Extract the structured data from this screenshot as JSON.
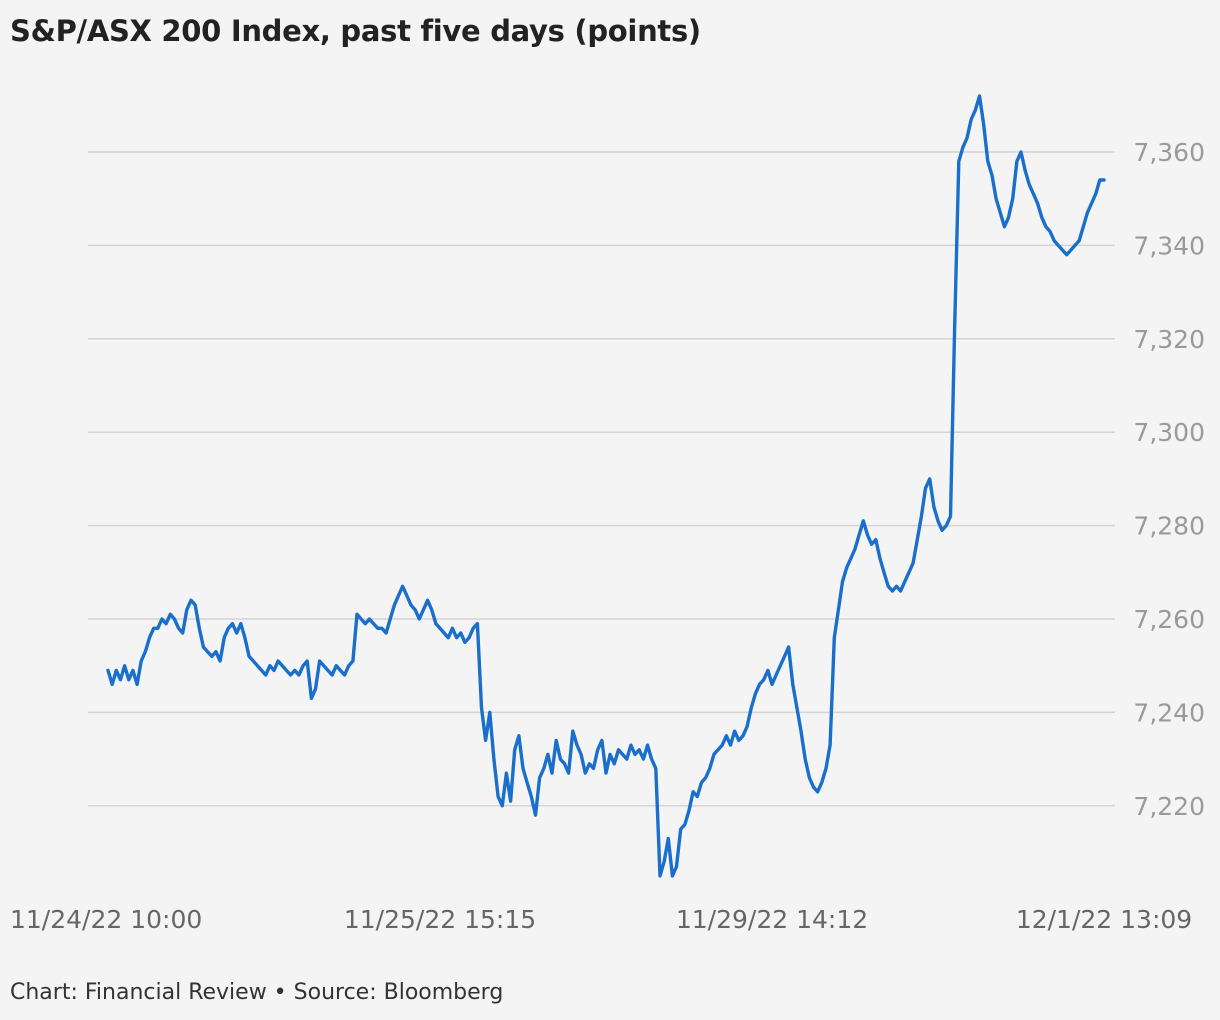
{
  "title": "S&P/ASX 200 Index, past five days (points)",
  "footer": "Chart: Financial Review • Source: Bloomberg",
  "colors": {
    "line": "#1a6fcc",
    "background": "#f4f4f4",
    "grid": "#d4d4d4"
  },
  "chart_data": {
    "type": "line",
    "title": "S&P/ASX 200 Index, past five days (points)",
    "xlabel": "",
    "ylabel": "",
    "ylim": [
      7203,
      7375
    ],
    "yticks": [
      7220,
      7240,
      7260,
      7280,
      7300,
      7320,
      7340,
      7360
    ],
    "ytick_labels": [
      "7,220",
      "7,240",
      "7,260",
      "7,280",
      "7,300",
      "7,320",
      "7,340",
      "7,360"
    ],
    "xticks": [
      "11/24/22 10:00",
      "11/25/22 15:15",
      "11/29/22 14:12",
      "12/1/22 13:09"
    ],
    "xtick_positions": [
      0,
      80,
      160,
      240
    ],
    "grid": true,
    "legend": "none",
    "series": [
      {
        "values": [
          7249,
          7246,
          7249,
          7247,
          7250,
          7247,
          7249,
          7246,
          7251,
          7253,
          7256,
          7258,
          7258,
          7260,
          7259,
          7261,
          7260,
          7258,
          7257,
          7262,
          7264,
          7263,
          7258,
          7254,
          7253,
          7252,
          7253,
          7251,
          7256,
          7258,
          7259,
          7257,
          7259,
          7256,
          7252,
          7251,
          7250,
          7249,
          7248,
          7250,
          7249,
          7251,
          7250,
          7249,
          7248,
          7249,
          7248,
          7250,
          7251,
          7243,
          7245,
          7251,
          7250,
          7249,
          7248,
          7250,
          7249,
          7248,
          7250,
          7251,
          7261,
          7260,
          7259,
          7260,
          7259,
          7258,
          7258,
          7257,
          7260,
          7263,
          7265,
          7267,
          7265,
          7263,
          7262,
          7260,
          7262,
          7264,
          7262,
          7259,
          7258,
          7257,
          7256,
          7258,
          7256,
          7257,
          7255,
          7256,
          7258,
          7259,
          7241,
          7234,
          7240,
          7230,
          7222,
          7220,
          7227,
          7221,
          7232,
          7235,
          7228,
          7225,
          7222,
          7218,
          7226,
          7228,
          7231,
          7227,
          7234,
          7230,
          7229,
          7227,
          7236,
          7233,
          7231,
          7227,
          7229,
          7228,
          7232,
          7234,
          7227,
          7231,
          7229,
          7232,
          7231,
          7230,
          7233,
          7231,
          7232,
          7230,
          7233,
          7230,
          7228,
          7205,
          7208,
          7213,
          7205,
          7207,
          7215,
          7216,
          7219,
          7223,
          7222,
          7225,
          7226,
          7228,
          7231,
          7232,
          7233,
          7235,
          7233,
          7236,
          7234,
          7235,
          7237,
          7241,
          7244,
          7246,
          7247,
          7249,
          7246,
          7248,
          7250,
          7252,
          7254,
          7246,
          7241,
          7236,
          7230,
          7226,
          7224,
          7223,
          7225,
          7228,
          7233,
          7256,
          7262,
          7268,
          7271,
          7273,
          7275,
          7278,
          7281,
          7278,
          7276,
          7277,
          7273,
          7270,
          7267,
          7266,
          7267,
          7266,
          7268,
          7270,
          7272,
          7277,
          7282,
          7288,
          7290,
          7284,
          7281,
          7279,
          7280,
          7282,
          7322,
          7358,
          7361,
          7363,
          7367,
          7369,
          7372,
          7366,
          7358,
          7355,
          7350,
          7347,
          7344,
          7346,
          7350,
          7358,
          7360,
          7356,
          7353,
          7351,
          7349,
          7346,
          7344,
          7343,
          7341,
          7340,
          7339,
          7338,
          7339,
          7340,
          7341,
          7344,
          7347,
          7349,
          7351,
          7354,
          7354
        ]
      }
    ]
  }
}
